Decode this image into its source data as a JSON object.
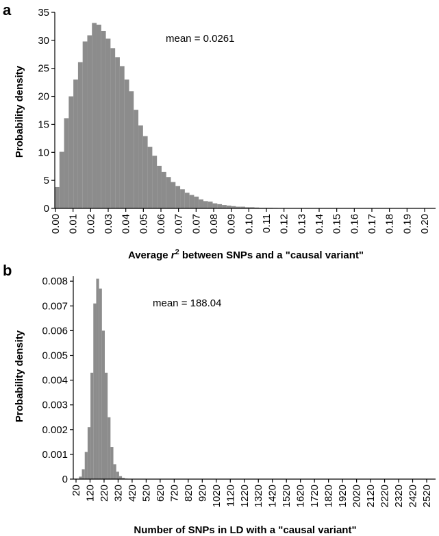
{
  "chart_data": [
    {
      "type": "bar",
      "panel_label": "a",
      "annotation": "mean = 0.0261",
      "xlabel_prefix": "Average ",
      "xlabel_var": "r",
      "xlabel_sup": "2",
      "xlabel_suffix": " between SNPs and a \"causal variant\"",
      "ylabel": "Probability density",
      "ylim": [
        0,
        35
      ],
      "yticks": [
        "0",
        "5",
        "10",
        "15",
        "20",
        "25",
        "30",
        "35"
      ],
      "xlim": [
        0,
        0.205
      ],
      "xticks": [
        "0.00",
        "0.01",
        "0.02",
        "0.03",
        "0.04",
        "0.05",
        "0.06",
        "0.07",
        "0.07",
        "0.08",
        "0.09",
        "0.10",
        "0.11",
        "0.12",
        "0.13",
        "0.14",
        "0.15",
        "0.16",
        "0.17",
        "0.18",
        "0.19",
        "0.20"
      ],
      "bin_width": 0.0025,
      "values": [
        3.8,
        10.1,
        16.1,
        20.0,
        23.0,
        26.1,
        29.8,
        30.9,
        33.1,
        32.8,
        31.7,
        30.3,
        28.6,
        27.0,
        25.4,
        23.0,
        20.9,
        17.6,
        14.8,
        12.9,
        11.0,
        9.4,
        7.6,
        6.5,
        5.6,
        4.7,
        4.0,
        3.4,
        2.8,
        2.4,
        2.1,
        1.6,
        1.3,
        1.2,
        0.9,
        0.75,
        0.6,
        0.5,
        0.4,
        0.3,
        0.3,
        0.2,
        0.2,
        0.15,
        0.1,
        0.1,
        0.1,
        0.08,
        0.06,
        0.05,
        0.05,
        0.04,
        0.03,
        0.03,
        0.02,
        0.02,
        0.02,
        0.02,
        0.02,
        0.02,
        0.01,
        0.01,
        0.01,
        0.01,
        0.01,
        0.01,
        0.01,
        0.01,
        0.01,
        0.01,
        0.01,
        0.01,
        0.01,
        0.01,
        0.01,
        0.01,
        0.01,
        0.01,
        0.01,
        0.01,
        0.01,
        0.01
      ],
      "grid": false
    },
    {
      "type": "bar",
      "panel_label": "b",
      "annotation": "mean = 188.04",
      "xlabel": "Number of SNPs in LD with a \"causal variant\"",
      "ylabel": "Probability density",
      "ylim": [
        0,
        0.0082
      ],
      "yticks": [
        "0",
        "0.001",
        "0.002",
        "0.003",
        "0.004",
        "0.005",
        "0.006",
        "0.007",
        "0.008"
      ],
      "xlim": [
        20,
        2550
      ],
      "xticks": [
        "20",
        "120",
        "220",
        "320",
        "420",
        "520",
        "620",
        "720",
        "820",
        "920",
        "1020",
        "1120",
        "1220",
        "1320",
        "1420",
        "1520",
        "1620",
        "1720",
        "1820",
        "1920",
        "2020",
        "2120",
        "2220",
        "2320",
        "2420",
        "2520"
      ],
      "bin_start": 60,
      "bin_width": 20,
      "values": [
        0.0001,
        0.0004,
        0.0011,
        0.0021,
        0.0043,
        0.0071,
        0.0081,
        0.0077,
        0.006,
        0.0043,
        0.0025,
        0.0013,
        0.0006,
        0.0003,
        0.00012,
        5e-05,
        2e-05
      ],
      "grid": false
    }
  ]
}
